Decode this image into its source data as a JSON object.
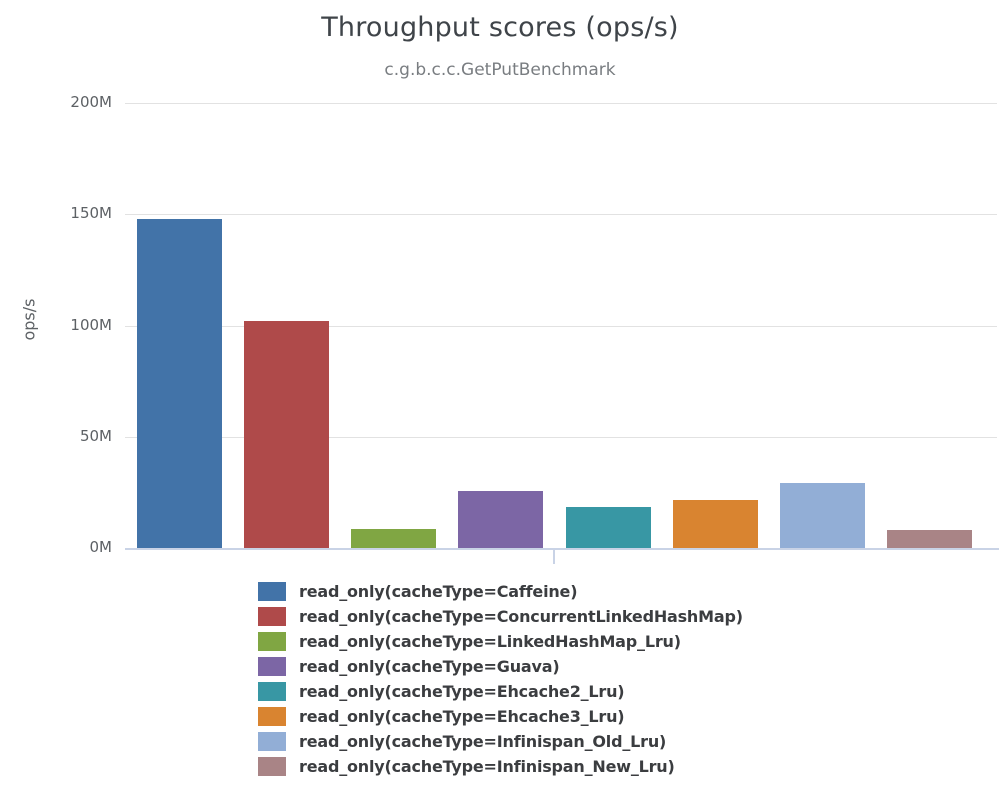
{
  "chart_data": {
    "type": "bar",
    "title": "Throughput scores (ops/s)",
    "subtitle": "c.g.b.c.c.GetPutBenchmark",
    "xlabel": "",
    "ylabel": "ops/s",
    "ylim": [
      0,
      200000000
    ],
    "grid": true,
    "legend_position": "bottom",
    "background_color": "#ffffff",
    "gridline_color": "#e2e2e2",
    "axis_line_color": "#c9d3e6",
    "yticks": [
      {
        "label": "0M",
        "value": 0
      },
      {
        "label": "50M",
        "value": 50000000
      },
      {
        "label": "100M",
        "value": 100000000
      },
      {
        "label": "150M",
        "value": 150000000
      },
      {
        "label": "200M",
        "value": 200000000
      }
    ],
    "series": [
      {
        "name": "read_only(cacheType=Caffeine)",
        "value": 148000000,
        "color": "#4273a8"
      },
      {
        "name": "read_only(cacheType=ConcurrentLinkedHashMap)",
        "value": 102000000,
        "color": "#af4a4a"
      },
      {
        "name": "read_only(cacheType=LinkedHashMap_Lru)",
        "value": 8500000,
        "color": "#80a643"
      },
      {
        "name": "read_only(cacheType=Guava)",
        "value": 25500000,
        "color": "#7c66a5"
      },
      {
        "name": "read_only(cacheType=Ehcache2_Lru)",
        "value": 18500000,
        "color": "#3897a4"
      },
      {
        "name": "read_only(cacheType=Ehcache3_Lru)",
        "value": 21500000,
        "color": "#d98430"
      },
      {
        "name": "read_only(cacheType=Infinispan_Old_Lru)",
        "value": 29000000,
        "color": "#92aed6"
      },
      {
        "name": "read_only(cacheType=Infinispan_New_Lru)",
        "value": 8000000,
        "color": "#a98486"
      }
    ]
  }
}
